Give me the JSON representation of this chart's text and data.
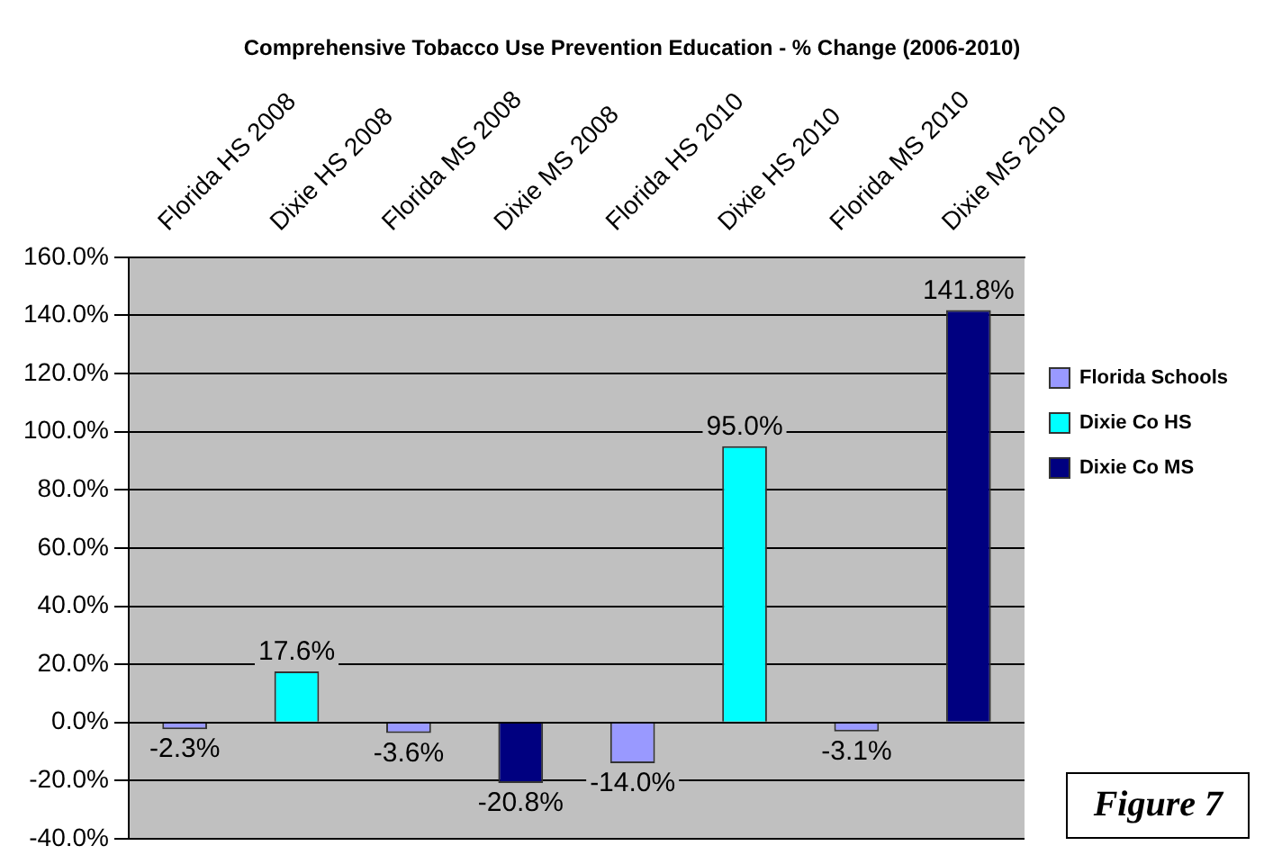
{
  "chart_data": {
    "type": "bar",
    "title": "Comprehensive Tobacco Use Prevention Education - % Change (2006-2010)",
    "categories": [
      "Florida HS 2008",
      "Dixie HS 2008",
      "Florida MS 2008",
      "Dixie MS 2008",
      "Florida HS 2010",
      "Dixie HS 2010",
      "Florida MS 2010",
      "Dixie MS 2010"
    ],
    "series": [
      {
        "name": "Florida Schools",
        "color": "#9999ff",
        "values": [
          -2.3,
          null,
          -3.6,
          null,
          -14.0,
          null,
          -3.1,
          null
        ],
        "value_labels": [
          "-2.3%",
          null,
          "-3.6%",
          null,
          "-14.0%",
          null,
          "-3.1%",
          null
        ]
      },
      {
        "name": "Dixie Co HS",
        "color": "#00ffff",
        "values": [
          null,
          17.6,
          null,
          null,
          null,
          95.0,
          null,
          null
        ],
        "value_labels": [
          null,
          "17.6%",
          null,
          null,
          null,
          "95.0%",
          null,
          null
        ]
      },
      {
        "name": "Dixie Co MS",
        "color": "#000080",
        "values": [
          null,
          null,
          null,
          -20.8,
          null,
          null,
          null,
          141.8
        ],
        "value_labels": [
          null,
          null,
          null,
          "-20.8%",
          null,
          null,
          null,
          "141.8%"
        ]
      }
    ],
    "ylim": [
      -40,
      160
    ],
    "yticks": [
      {
        "value": -40,
        "label": "-40.0%"
      },
      {
        "value": -20,
        "label": "-20.0%"
      },
      {
        "value": 0,
        "label": "0.0%"
      },
      {
        "value": 20,
        "label": "20.0%"
      },
      {
        "value": 40,
        "label": "40.0%"
      },
      {
        "value": 60,
        "label": "60.0%"
      },
      {
        "value": 80,
        "label": "80.0%"
      },
      {
        "value": 100,
        "label": "100.0%"
      },
      {
        "value": 120,
        "label": "120.0%"
      },
      {
        "value": 140,
        "label": "140.0%"
      },
      {
        "value": 160,
        "label": "160.0%"
      }
    ],
    "grid": "y",
    "legend": "right",
    "annotations": [
      "Figure 7"
    ]
  }
}
